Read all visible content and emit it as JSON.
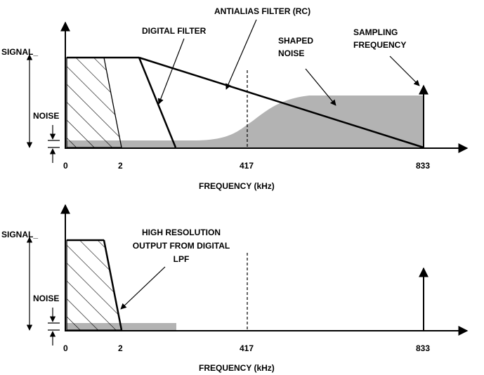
{
  "colors": {
    "ink": "#000000",
    "noise_fill": "#b3b3b3",
    "background": "#ffffff"
  },
  "top": {
    "signal_label": "SIGNAL_",
    "noise_label": "NOISE",
    "digital_filter_label": "DIGITAL FILTER",
    "antialias_label": "ANTIALIAS FILTER (RC)",
    "shaped_noise_lines": [
      "SHAPED",
      "NOISE"
    ],
    "sampling_lines": [
      "SAMPLING",
      "FREQUENCY"
    ],
    "ticks": [
      "0",
      "2",
      "417",
      "833"
    ],
    "xlabel": "FREQUENCY (kHz)"
  },
  "bottom": {
    "signal_label": "SIGNAL_",
    "noise_label": "NOISE",
    "output_lines": [
      "HIGH RESOLUTION",
      "OUTPUT FROM DIGITAL",
      "LPF"
    ],
    "ticks": [
      "0",
      "2",
      "417",
      "833"
    ],
    "xlabel": "FREQUENCY (kHz)"
  }
}
